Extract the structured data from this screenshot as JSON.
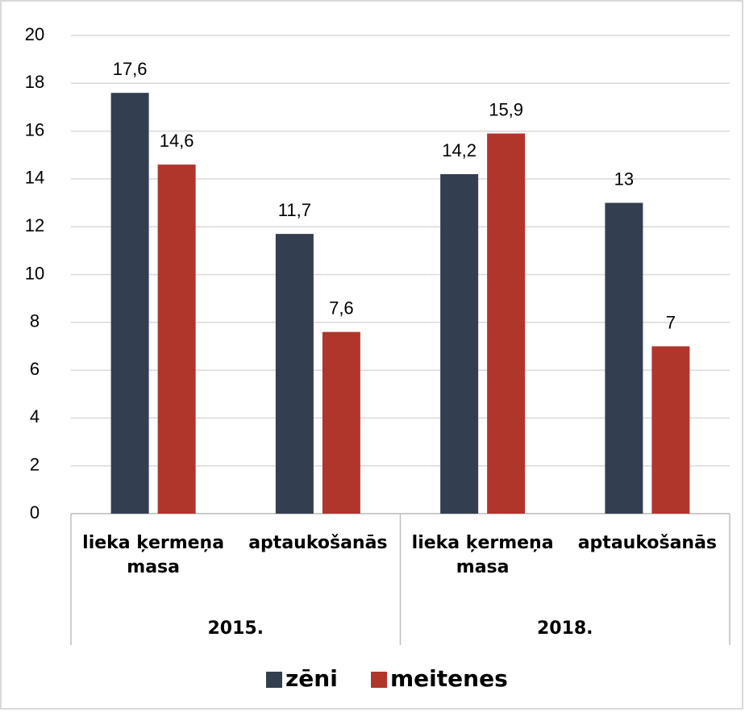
{
  "chart_data": {
    "type": "bar",
    "groups": [
      {
        "name": "2015.",
        "categories": [
          "lieka ķermeņa masa",
          "aptaukošanās"
        ]
      },
      {
        "name": "2018.",
        "categories": [
          "lieka ķermeņa masa",
          "aptaukošanās"
        ]
      }
    ],
    "series": [
      {
        "name": "zēni",
        "color": "#333f50",
        "values": [
          17.6,
          11.7,
          14.2,
          13
        ],
        "value_labels": [
          "17,6",
          "11,7",
          "14,2",
          "13"
        ]
      },
      {
        "name": "meitenes",
        "color": "#b0362b",
        "values": [
          14.6,
          7.6,
          15.9,
          7
        ],
        "value_labels": [
          "14,6",
          "7,6",
          "15,9",
          "7"
        ]
      }
    ],
    "ylim": [
      0,
      20
    ],
    "yticks": [
      0,
      2,
      4,
      6,
      8,
      10,
      12,
      14,
      16,
      18,
      20
    ],
    "grid": true,
    "legend": "bottom"
  }
}
